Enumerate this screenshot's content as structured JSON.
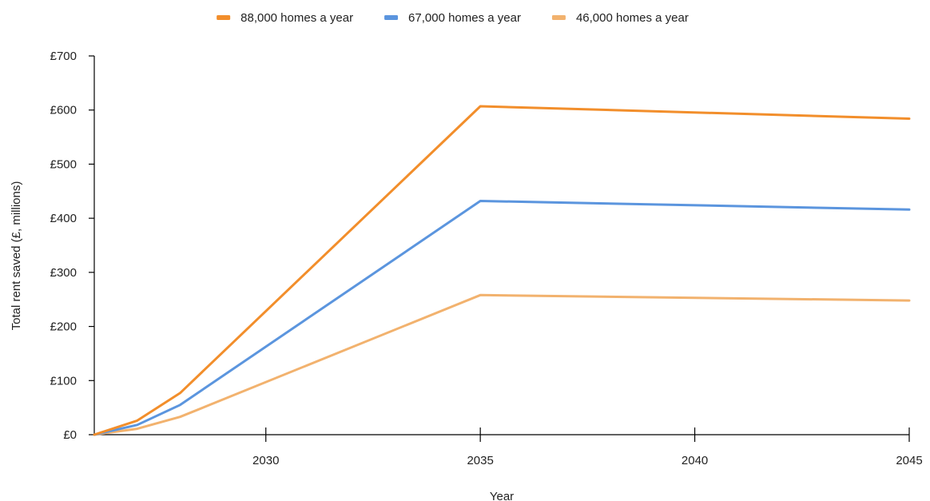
{
  "chart_data": {
    "type": "line",
    "title": "",
    "xlabel": "Year",
    "ylabel": "Total rent saved (£, millions)",
    "xlim": [
      2026,
      2045
    ],
    "ylim": [
      0,
      700
    ],
    "x_ticks": [
      2030,
      2035,
      2040,
      2045
    ],
    "x_tick_labels": [
      "2030",
      "2035",
      "2040",
      "2045"
    ],
    "y_ticks": [
      0,
      100,
      200,
      300,
      400,
      500,
      600,
      700
    ],
    "y_tick_labels": [
      "£0",
      "£100",
      "£200",
      "£300",
      "£400",
      "£500",
      "£600",
      "£700"
    ],
    "grid": false,
    "legend_position": "top-center",
    "series": [
      {
        "name": "88,000 homes a year",
        "color": "#F28E2B",
        "x": [
          2026,
          2027,
          2028,
          2035,
          2045
        ],
        "values": [
          0,
          26,
          77,
          607,
          584
        ]
      },
      {
        "name": "67,000 homes a year",
        "color": "#5B95DE",
        "x": [
          2026,
          2027,
          2028,
          2035,
          2045
        ],
        "values": [
          0,
          18,
          55,
          432,
          416
        ]
      },
      {
        "name": "46,000 homes a year",
        "color": "#F2B26E",
        "x": [
          2026,
          2027,
          2028,
          2035,
          2045
        ],
        "values": [
          0,
          11,
          33,
          258,
          248
        ]
      }
    ]
  }
}
